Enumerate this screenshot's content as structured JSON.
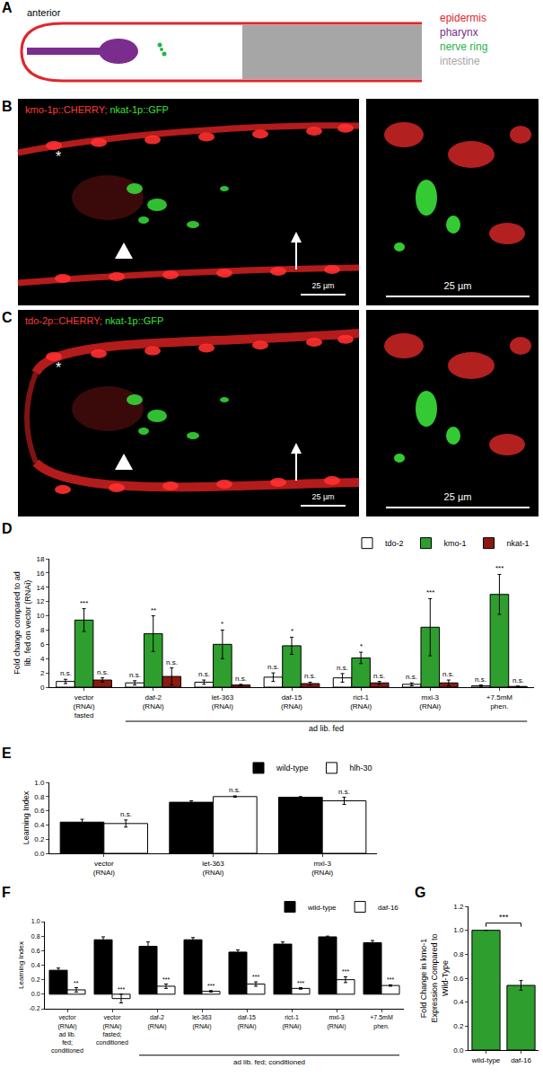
{
  "figure": {
    "A": {
      "panel": "A",
      "anterior": "anterior",
      "legend": [
        {
          "text": "epidermis",
          "color": "#e0262b"
        },
        {
          "text": "pharynx",
          "color": "#7b2d8e"
        },
        {
          "text": "nerve ring",
          "color": "#2bb34a"
        },
        {
          "text": "intestine",
          "color": "#a6a6a6"
        }
      ]
    },
    "B": {
      "panel": "B",
      "caption": [
        {
          "text": "kmo-1p::CHERRY;",
          "color": "#ff3a3a"
        },
        {
          "text": "nkat-1p::GFP",
          "color": "#3ae03a"
        }
      ],
      "scale_bar": "25 µm",
      "inset_scale_bar": "25 µm",
      "mark": "*"
    },
    "C": {
      "panel": "C",
      "caption": [
        {
          "text": "tdo-2p::CHERRY;",
          "color": "#ff3a3a"
        },
        {
          "text": "nkat-1p::GFP",
          "color": "#3ae03a"
        }
      ],
      "scale_bar": "25 µm",
      "inset_scale_bar": "25 µm",
      "mark": "*"
    }
  },
  "chart_data": [
    {
      "panel": "D",
      "type": "bar",
      "categories": [
        "vector (RNAi) fasted",
        "daf-2 (RNAi)",
        "let-363 (RNAi)",
        "daf-15 (RNAi)",
        "rict-1 (RNAi)",
        "mxl-3 (RNAi)",
        "+7.5mM phen."
      ],
      "group_labels": [
        {
          "text": "ad lib. fed",
          "categories": [
            "daf-2 (RNAi)",
            "+7.5mM phen."
          ]
        }
      ],
      "y_label": "Fold change compared to ad lib. fed on vector (RNAi)",
      "ylim": [
        0,
        18
      ],
      "yticks": [
        0,
        2,
        4,
        6,
        8,
        10,
        12,
        14,
        16,
        18
      ],
      "legend": "top right",
      "series": [
        {
          "name": "tdo-2",
          "color": "#ffffff",
          "values": [
            0.8,
            0.6,
            0.7,
            1.4,
            1.3,
            0.4,
            0.2
          ],
          "errors": [
            0.3,
            0.3,
            0.3,
            0.6,
            0.6,
            0.2,
            0.1
          ],
          "significance": [
            "n.s.",
            "n.s.",
            "n.s.",
            "n.s.",
            "n.s.",
            "n.s.",
            "n.s."
          ]
        },
        {
          "name": "kmo-1",
          "color": "#2e9e2e",
          "values": [
            9.4,
            7.5,
            6.0,
            5.8,
            4.1,
            8.4,
            13.0
          ],
          "errors": [
            1.6,
            2.5,
            2.0,
            1.2,
            0.8,
            4.0,
            2.8
          ],
          "significance": [
            "***",
            "**",
            "*",
            "*",
            "*",
            "***",
            "***"
          ]
        },
        {
          "name": "nkat-1",
          "color": "#8b1a10",
          "values": [
            1.0,
            1.5,
            0.3,
            0.5,
            0.6,
            0.6,
            0.1
          ],
          "errors": [
            0.3,
            1.2,
            0.1,
            0.2,
            0.2,
            0.4,
            0.05
          ],
          "significance": [
            "n.s.",
            "n.s.",
            "n.s.",
            "n.s.",
            "n.s.",
            "n.s.",
            "n.s."
          ]
        }
      ]
    },
    {
      "panel": "E",
      "type": "bar",
      "categories": [
        "vector (RNAi)",
        "let-363 (RNAi)",
        "mxl-3 (RNAi)"
      ],
      "y_label": "Learning Index",
      "ylim": [
        0,
        1
      ],
      "yticks": [
        {
          "value": 0,
          "label": "0.0"
        },
        0.2,
        0.4,
        0.6,
        0.8,
        {
          "value": 1,
          "label": "1.0"
        }
      ],
      "legend": "top right",
      "series": [
        {
          "name": "wild-type",
          "color": "#000000",
          "values": [
            0.44,
            0.72,
            0.79
          ],
          "errors": [
            0.04,
            0.02,
            0.01
          ]
        },
        {
          "name": "hlh-30",
          "color": "#ffffff",
          "values": [
            0.42,
            0.8,
            0.74
          ],
          "errors": [
            0.05,
            0.01,
            0.05
          ],
          "significance": [
            "n.s.",
            "n.s.",
            "n.s."
          ]
        }
      ]
    },
    {
      "panel": "F",
      "type": "bar",
      "categories": [
        "vector (RNAi) ad lib. fed; conditioned",
        "vector (RNAi) fasted; conditioned",
        "daf-2 (RNAi)",
        "let-363 (RNAi)",
        "daf-15 (RNAi)",
        "rict-1 (RNAi)",
        "mxl-3 (RNAi)",
        "+7.5mM phen."
      ],
      "group_labels": [
        {
          "text": "ad lib. fed; conditioned",
          "categories": [
            "daf-2 (RNAi)",
            "+7.5mM phen."
          ]
        }
      ],
      "y_label": "Learning Index",
      "ylim": [
        -0.2,
        1
      ],
      "yticks": [
        -0.2,
        {
          "value": 0,
          "label": "0.0"
        },
        0.2,
        0.4,
        0.6,
        0.8,
        {
          "value": 1,
          "label": "1.0"
        }
      ],
      "legend": "top right",
      "series": [
        {
          "name": "wild-type",
          "color": "#000000",
          "values": [
            0.33,
            0.75,
            0.66,
            0.75,
            0.58,
            0.69,
            0.79,
            0.71
          ],
          "errors": [
            0.03,
            0.04,
            0.06,
            0.03,
            0.03,
            0.03,
            0.01,
            0.03
          ]
        },
        {
          "name": "daf-16",
          "color": "#ffffff",
          "values": [
            0.06,
            -0.06,
            0.11,
            0.04,
            0.14,
            0.08,
            0.2,
            0.12
          ],
          "errors": [
            0.03,
            0.06,
            0.03,
            0.01,
            0.03,
            0.01,
            0.04,
            0.01
          ],
          "significance": [
            "**",
            "***",
            "***",
            "***",
            "***",
            "***",
            "***",
            "***"
          ]
        }
      ]
    },
    {
      "panel": "G",
      "type": "bar",
      "categories": [
        "wild-type",
        "daf-16"
      ],
      "y_label": "Fold Change in kmo-1 Expression Compared to Wild-Type",
      "ylim": [
        0,
        1.2
      ],
      "yticks": [
        {
          "value": 0,
          "label": "0.0"
        },
        0.2,
        0.4,
        0.6,
        0.8,
        {
          "value": 1,
          "label": "1.0"
        },
        1.2
      ],
      "color": "#2e9e2e",
      "values": [
        1.0,
        0.54
      ],
      "errors": [
        0,
        0.04
      ],
      "comparison": {
        "categories": [
          "wild-type",
          "daf-16"
        ],
        "label": "***"
      }
    }
  ]
}
